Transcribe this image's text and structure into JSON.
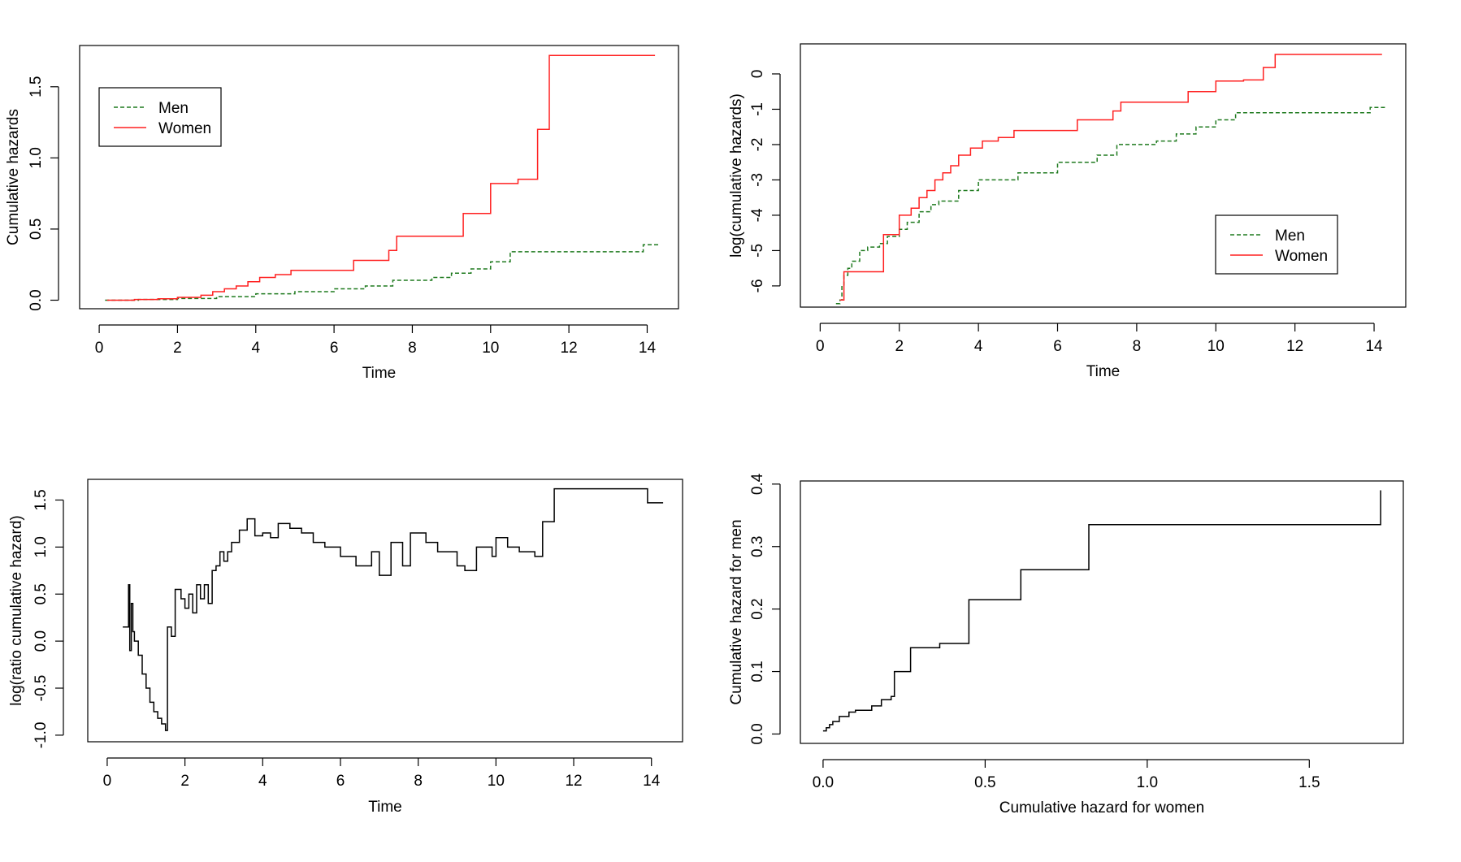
{
  "chart_data": [
    {
      "type": "line",
      "panel": "top-left",
      "xlabel": "Time",
      "ylabel": "Cumulative hazards",
      "xlim": [
        -0.5,
        14.8
      ],
      "ylim": [
        -0.06,
        1.79
      ],
      "xticks": [
        0,
        2,
        4,
        6,
        8,
        10,
        12,
        14
      ],
      "yticks": [
        0.0,
        0.5,
        1.0,
        1.5
      ],
      "ytick_labels": [
        "0.0",
        "0.5",
        "1.0",
        "1.5"
      ],
      "legend": {
        "position": "top-left",
        "entries": [
          {
            "label": "Men",
            "color": "#1f7a1f",
            "dash": "dashed"
          },
          {
            "label": "Women",
            "color": "#ff2020",
            "dash": "solid"
          }
        ]
      },
      "series": [
        {
          "name": "Men",
          "color": "#1f7a1f",
          "dash": "dashed",
          "step": true,
          "x": [
            0.15,
            1.0,
            2.0,
            3.0,
            4.0,
            5.0,
            6.0,
            6.8,
            7.5,
            8.5,
            9.0,
            9.5,
            10.0,
            10.5,
            12.0,
            13.9,
            14.3
          ],
          "y": [
            0.0,
            0.005,
            0.012,
            0.025,
            0.045,
            0.06,
            0.08,
            0.1,
            0.14,
            0.16,
            0.19,
            0.22,
            0.27,
            0.34,
            0.34,
            0.39,
            0.39
          ]
        },
        {
          "name": "Women",
          "color": "#ff2020",
          "dash": "solid",
          "step": true,
          "x": [
            0.2,
            0.9,
            1.5,
            2.0,
            2.6,
            2.9,
            3.2,
            3.5,
            3.8,
            4.1,
            4.5,
            4.9,
            6.5,
            7.4,
            7.6,
            9.3,
            10.0,
            10.7,
            11.2,
            11.5,
            14.2
          ],
          "y": [
            0.0,
            0.005,
            0.01,
            0.02,
            0.035,
            0.06,
            0.08,
            0.1,
            0.13,
            0.16,
            0.18,
            0.21,
            0.28,
            0.35,
            0.45,
            0.61,
            0.82,
            0.85,
            1.2,
            1.72,
            1.72
          ]
        }
      ]
    },
    {
      "type": "line",
      "panel": "top-right",
      "xlabel": "Time",
      "ylabel": "log(cumulative hazards)",
      "xlim": [
        -0.5,
        14.8
      ],
      "ylim": [
        -6.6,
        0.85
      ],
      "xticks": [
        0,
        2,
        4,
        6,
        8,
        10,
        12,
        14
      ],
      "yticks": [
        0,
        -1,
        -2,
        -3,
        -4,
        -5,
        -6
      ],
      "ytick_labels": [
        "0",
        "-1",
        "-2",
        "-3",
        "-4",
        "-5",
        "-6"
      ],
      "legend": {
        "position": "bottom-right",
        "entries": [
          {
            "label": "Men",
            "color": "#1f7a1f",
            "dash": "dashed"
          },
          {
            "label": "Women",
            "color": "#ff2020",
            "dash": "solid"
          }
        ]
      },
      "series": [
        {
          "name": "Men",
          "color": "#1f7a1f",
          "dash": "dashed",
          "step": true,
          "x": [
            0.4,
            0.5,
            0.55,
            0.6,
            0.7,
            0.8,
            1.0,
            1.2,
            1.5,
            1.7,
            2.0,
            2.2,
            2.5,
            2.8,
            3.0,
            3.5,
            4.0,
            5.0,
            6.0,
            7.0,
            7.5,
            8.5,
            9.0,
            9.5,
            10.0,
            10.5,
            12.0,
            13.9,
            14.3
          ],
          "y": [
            -6.5,
            -6.4,
            -6.0,
            -5.7,
            -5.5,
            -5.3,
            -5.0,
            -4.9,
            -4.8,
            -4.6,
            -4.4,
            -4.2,
            -3.9,
            -3.7,
            -3.6,
            -3.3,
            -3.0,
            -2.8,
            -2.5,
            -2.3,
            -2.0,
            -1.9,
            -1.7,
            -1.5,
            -1.3,
            -1.1,
            -1.1,
            -0.95,
            -0.95
          ]
        },
        {
          "name": "Women",
          "color": "#ff2020",
          "dash": "solid",
          "step": true,
          "x": [
            0.5,
            0.6,
            1.6,
            1.6,
            2.0,
            2.3,
            2.5,
            2.7,
            2.9,
            3.1,
            3.3,
            3.5,
            3.8,
            4.1,
            4.5,
            4.9,
            6.5,
            7.4,
            7.6,
            9.3,
            10.0,
            10.7,
            11.2,
            11.5,
            14.2
          ],
          "y": [
            -6.4,
            -5.6,
            -5.6,
            -4.55,
            -4.0,
            -3.8,
            -3.5,
            -3.3,
            -3.0,
            -2.8,
            -2.6,
            -2.3,
            -2.1,
            -1.9,
            -1.8,
            -1.6,
            -1.3,
            -1.05,
            -0.8,
            -0.5,
            -0.2,
            -0.17,
            0.18,
            0.55,
            0.55
          ]
        }
      ]
    },
    {
      "type": "line",
      "panel": "bottom-left",
      "xlabel": "Time",
      "ylabel": "log(ratio cumulative hazard)",
      "xlim": [
        -0.5,
        14.8
      ],
      "ylim": [
        -1.07,
        1.72
      ],
      "xticks": [
        0,
        2,
        4,
        6,
        8,
        10,
        12,
        14
      ],
      "yticks": [
        -1.0,
        -0.5,
        0.0,
        0.5,
        1.0,
        1.5
      ],
      "ytick_labels": [
        "-1.0",
        "-0.5",
        "0.0",
        "0.5",
        "1.0",
        "1.5"
      ],
      "series": [
        {
          "name": "",
          "color": "#000000",
          "dash": "solid",
          "step": true,
          "x": [
            0.4,
            0.55,
            0.58,
            0.62,
            0.66,
            0.7,
            0.8,
            0.9,
            1.0,
            1.1,
            1.2,
            1.3,
            1.4,
            1.5,
            1.55,
            1.65,
            1.75,
            1.9,
            2.0,
            2.1,
            2.2,
            2.3,
            2.4,
            2.5,
            2.6,
            2.7,
            2.8,
            2.9,
            3.0,
            3.1,
            3.2,
            3.4,
            3.6,
            3.8,
            4.0,
            4.2,
            4.4,
            4.7,
            5.0,
            5.3,
            5.6,
            6.0,
            6.4,
            6.8,
            7.0,
            7.3,
            7.6,
            7.8,
            8.2,
            8.5,
            9.0,
            9.2,
            9.5,
            9.9,
            10.0,
            10.3,
            10.6,
            11.0,
            11.2,
            11.5,
            13.9,
            14.3
          ],
          "y": [
            0.15,
            0.6,
            -0.1,
            0.4,
            0.1,
            0.0,
            -0.15,
            -0.35,
            -0.5,
            -0.65,
            -0.75,
            -0.82,
            -0.88,
            -0.95,
            0.15,
            0.05,
            0.55,
            0.45,
            0.35,
            0.5,
            0.3,
            0.6,
            0.45,
            0.6,
            0.4,
            0.75,
            0.8,
            0.95,
            0.85,
            0.95,
            1.05,
            1.18,
            1.3,
            1.12,
            1.15,
            1.1,
            1.25,
            1.2,
            1.15,
            1.05,
            1.0,
            0.9,
            0.8,
            0.95,
            0.7,
            1.05,
            0.8,
            1.15,
            1.05,
            0.95,
            0.8,
            0.75,
            1.0,
            0.9,
            1.1,
            1.0,
            0.95,
            0.9,
            1.27,
            1.62,
            1.47,
            1.47
          ]
        }
      ]
    },
    {
      "type": "line",
      "panel": "bottom-right",
      "xlabel": "Cumulative hazard for women",
      "ylabel": "Cumulative hazard for men",
      "xlim": [
        -0.07,
        1.79
      ],
      "ylim": [
        -0.015,
        0.405
      ],
      "xticks": [
        0.0,
        0.5,
        1.0,
        1.5
      ],
      "xtick_labels": [
        "0.0",
        "0.5",
        "1.0",
        "1.5"
      ],
      "yticks": [
        0.0,
        0.1,
        0.2,
        0.3,
        0.4
      ],
      "ytick_labels": [
        "0.0",
        "0.1",
        "0.2",
        "0.3",
        "0.4"
      ],
      "series": [
        {
          "name": "",
          "color": "#000000",
          "dash": "solid",
          "step": true,
          "x": [
            0.0,
            0.01,
            0.02,
            0.03,
            0.05,
            0.08,
            0.1,
            0.15,
            0.18,
            0.21,
            0.22,
            0.27,
            0.36,
            0.45,
            0.61,
            0.82,
            1.72
          ],
          "y": [
            0.005,
            0.01,
            0.015,
            0.02,
            0.028,
            0.035,
            0.038,
            0.045,
            0.055,
            0.06,
            0.1,
            0.138,
            0.145,
            0.215,
            0.263,
            0.335,
            0.39
          ]
        }
      ]
    }
  ]
}
